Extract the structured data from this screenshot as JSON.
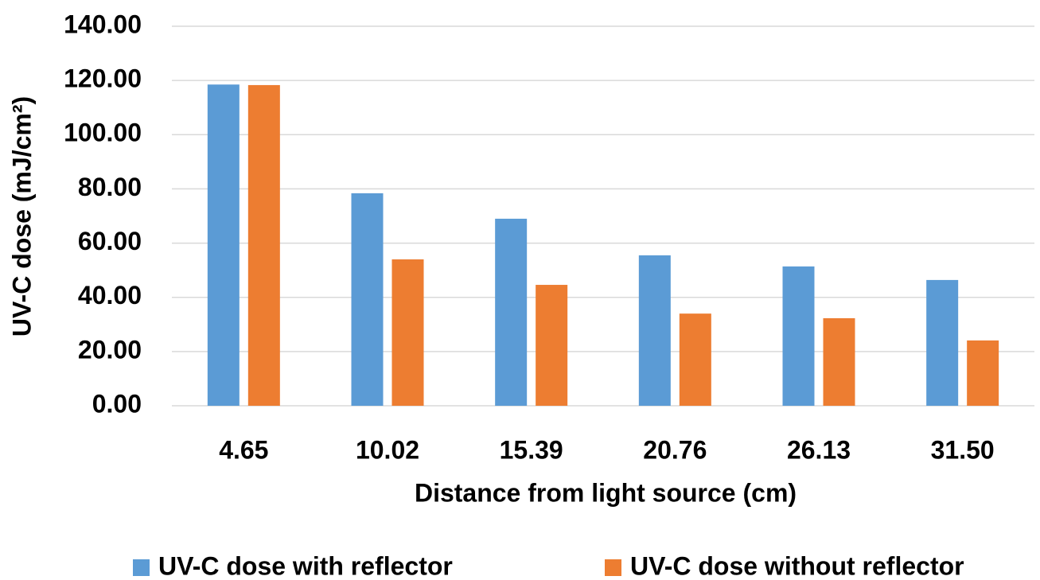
{
  "chart_data": {
    "type": "bar",
    "x_label": "Distance from light source (cm)",
    "y_label": "UV-C dose (mJ/cm²)",
    "categories": [
      "4.65",
      "10.02",
      "15.39",
      "20.76",
      "26.13",
      "31.50"
    ],
    "series": [
      {
        "name": "UV-C dose with reflector",
        "color": "#5b9bd5",
        "values": [
          118.5,
          78.4,
          69.0,
          55.5,
          51.4,
          46.4
        ]
      },
      {
        "name": "UV-C dose without reflector",
        "color": "#ed7d31",
        "values": [
          118.3,
          54.0,
          44.6,
          34.0,
          32.3,
          24.1
        ]
      }
    ],
    "ylim": [
      0,
      140
    ],
    "yticks": [
      {
        "value": 0,
        "label": "0.00"
      },
      {
        "value": 20,
        "label": "20.00"
      },
      {
        "value": 40,
        "label": "40.00"
      },
      {
        "value": 60,
        "label": "60.00"
      },
      {
        "value": 80,
        "label": "80.00"
      },
      {
        "value": 100,
        "label": "100.00"
      },
      {
        "value": 120,
        "label": "120.00"
      },
      {
        "value": 140,
        "label": "140.00"
      }
    ],
    "grid": true,
    "legend": "bottom"
  }
}
